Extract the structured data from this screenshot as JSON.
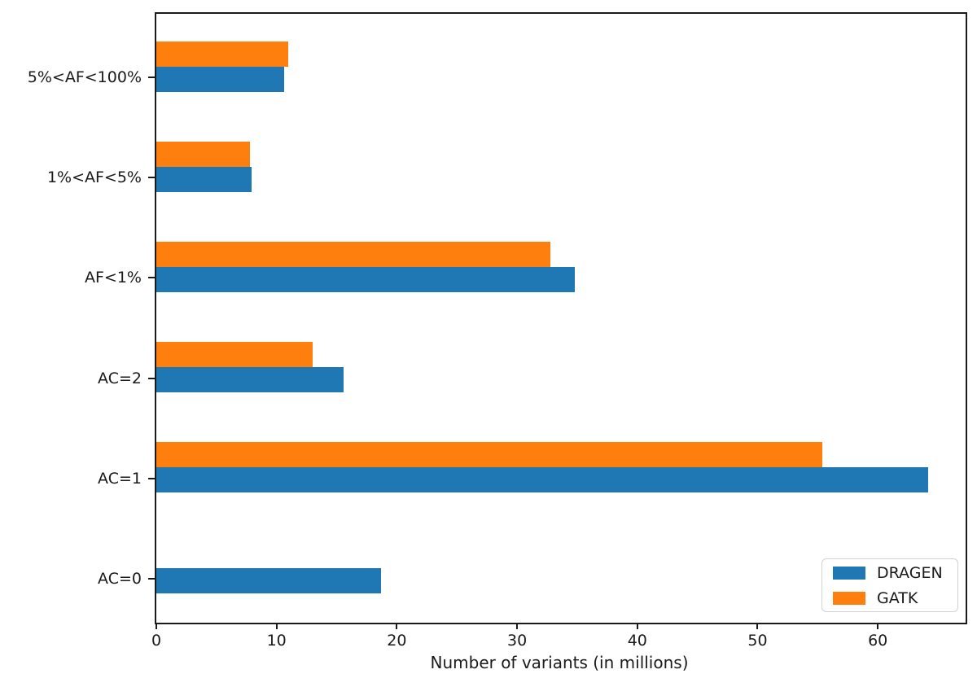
{
  "chart_data": {
    "type": "bar",
    "orientation": "horizontal",
    "title": "",
    "xlabel": "Number of variants (in millions)",
    "ylabel": "",
    "categories": [
      "5%<AF<100%",
      "1%<AF<5%",
      "AF<1%",
      "AC=2",
      "AC=1",
      "AC=0"
    ],
    "series": [
      {
        "name": "DRAGEN",
        "color": "#1f77b4",
        "values": [
          10.6,
          7.9,
          34.8,
          15.6,
          64.2,
          18.7
        ]
      },
      {
        "name": "GATK",
        "color": "#ff7f0e",
        "values": [
          11.0,
          7.8,
          32.8,
          13.0,
          55.4,
          0
        ]
      }
    ],
    "xlim": [
      0,
      67.3
    ],
    "xticks": [
      0,
      10,
      20,
      30,
      40,
      50,
      60
    ],
    "legend": {
      "position": "lower right",
      "entries": [
        "DRAGEN",
        "GATK"
      ]
    },
    "grid": false,
    "axis_color": "#1a1a1a",
    "background_color": "#ffffff"
  }
}
